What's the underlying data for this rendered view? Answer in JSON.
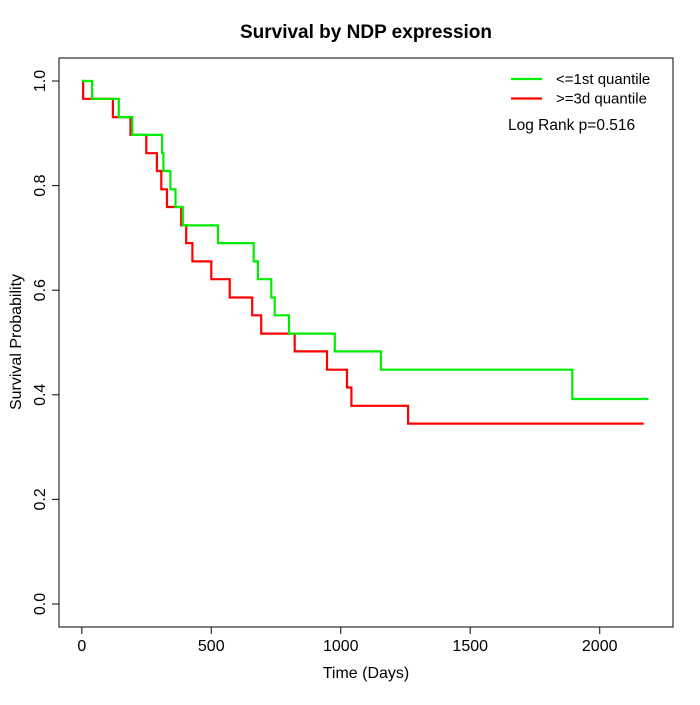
{
  "chart_data": {
    "type": "line",
    "subtype": "kaplan-meier-step",
    "title": "Survival by NDP expression",
    "xlabel": "Time (Days)",
    "ylabel": "Survival Probability",
    "xlim": [
      -88,
      2283
    ],
    "ylim": [
      -0.044,
      1.044
    ],
    "grid": false,
    "legend_position": "top-right",
    "annotation": "Log Rank p=0.516",
    "x_ticks": [
      {
        "v": 0,
        "label": "0"
      },
      {
        "v": 500,
        "label": "500"
      },
      {
        "v": 1000,
        "label": "1000"
      },
      {
        "v": 1500,
        "label": "1500"
      },
      {
        "v": 2000,
        "label": "2000"
      }
    ],
    "y_ticks": [
      {
        "v": 0.0,
        "label": "0.0"
      },
      {
        "v": 0.2,
        "label": "0.2"
      },
      {
        "v": 0.4,
        "label": "0.4"
      },
      {
        "v": 0.6,
        "label": "0.6"
      },
      {
        "v": 0.8,
        "label": "0.8"
      },
      {
        "v": 1.0,
        "label": "1.0"
      }
    ],
    "series": [
      {
        "name": "<=1st quantile",
        "color": "#00ee00",
        "points": [
          [
            0,
            1.0
          ],
          [
            40,
            0.966
          ],
          [
            143,
            0.931
          ],
          [
            195,
            0.897
          ],
          [
            310,
            0.862
          ],
          [
            315,
            0.828
          ],
          [
            342,
            0.793
          ],
          [
            362,
            0.759
          ],
          [
            390,
            0.724
          ],
          [
            526,
            0.69
          ],
          [
            664,
            0.655
          ],
          [
            680,
            0.621
          ],
          [
            732,
            0.586
          ],
          [
            745,
            0.552
          ],
          [
            800,
            0.517
          ],
          [
            977,
            0.483
          ],
          [
            1155,
            0.448
          ],
          [
            1894,
            0.392
          ]
        ],
        "end_x": 2188
      },
      {
        "name": ">=3d quantile",
        "color": "#ff0000",
        "points": [
          [
            0,
            1.0
          ],
          [
            5,
            0.966
          ],
          [
            120,
            0.931
          ],
          [
            188,
            0.897
          ],
          [
            249,
            0.862
          ],
          [
            290,
            0.828
          ],
          [
            307,
            0.793
          ],
          [
            329,
            0.759
          ],
          [
            384,
            0.724
          ],
          [
            403,
            0.69
          ],
          [
            427,
            0.655
          ],
          [
            500,
            0.621
          ],
          [
            571,
            0.586
          ],
          [
            658,
            0.552
          ],
          [
            693,
            0.517
          ],
          [
            822,
            0.483
          ],
          [
            947,
            0.448
          ],
          [
            1024,
            0.414
          ],
          [
            1041,
            0.379
          ],
          [
            1260,
            0.345
          ]
        ],
        "end_x": 2170
      }
    ]
  }
}
